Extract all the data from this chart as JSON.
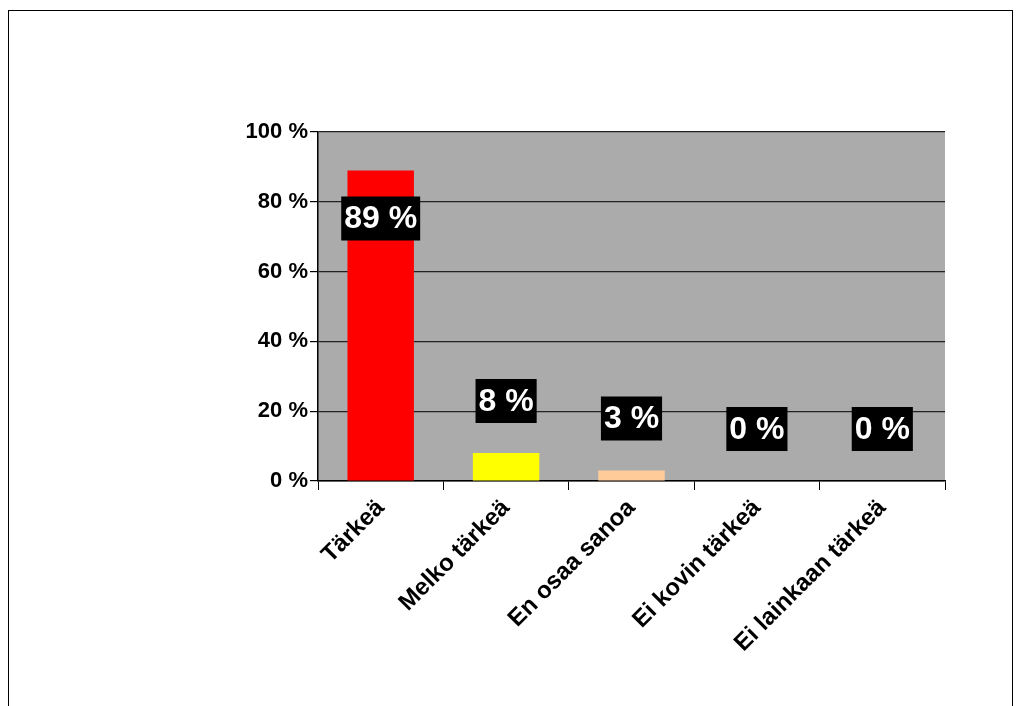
{
  "chart_data": {
    "type": "bar",
    "categories": [
      "Tärkeä",
      "Melko tärkeä",
      "En osaa sanoa",
      "Ei kovin tärkeä",
      "Ei lainkaan tärkeä"
    ],
    "values": [
      89,
      8,
      3,
      0,
      0
    ],
    "colors": [
      "#ff0000",
      "#ffff00",
      "#ffcc99",
      "#2850c8",
      "#600060"
    ],
    "value_labels": [
      "89 %",
      "8 %",
      "3 %",
      "0 %",
      "0 %"
    ],
    "ylim": [
      0,
      100
    ],
    "yticks": [
      {
        "value": 0,
        "label": "0 %"
      },
      {
        "value": 20,
        "label": "20 %"
      },
      {
        "value": 40,
        "label": "40 %"
      },
      {
        "value": 60,
        "label": "60 %"
      },
      {
        "value": 80,
        "label": "80 %"
      },
      {
        "value": 100,
        "label": "100 %"
      }
    ],
    "grid": "y"
  }
}
